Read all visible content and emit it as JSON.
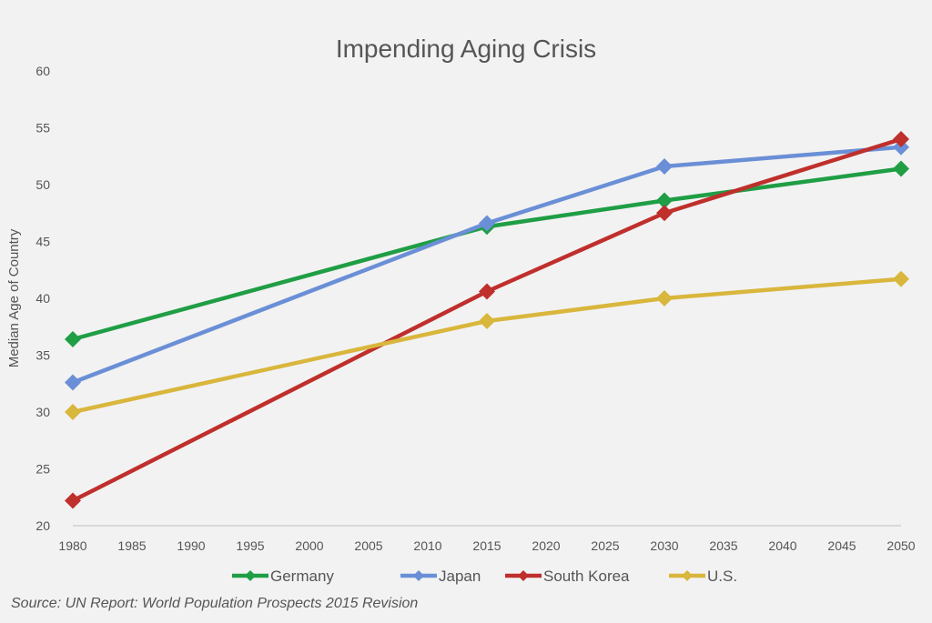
{
  "chart_data": {
    "type": "line",
    "title": "Impending Aging Crisis",
    "xlabel": "",
    "ylabel": "Median Age of Country",
    "xlim": [
      1980,
      2050
    ],
    "ylim": [
      20,
      60
    ],
    "x_ticks": [
      1980,
      1985,
      1990,
      1995,
      2000,
      2005,
      2010,
      2015,
      2020,
      2025,
      2030,
      2035,
      2040,
      2045,
      2050
    ],
    "y_ticks": [
      20,
      25,
      30,
      35,
      40,
      45,
      50,
      55,
      60
    ],
    "grid": false,
    "legend_placement": "bottom",
    "x": [
      1980,
      2015,
      2030,
      2050
    ],
    "series": [
      {
        "name": "Germany",
        "color": "#1f9e45",
        "values": [
          36.4,
          46.3,
          48.6,
          51.4
        ]
      },
      {
        "name": "Japan",
        "color": "#6a8fd6",
        "values": [
          32.6,
          46.6,
          51.6,
          53.3
        ]
      },
      {
        "name": "South Korea",
        "color": "#bf2f2c",
        "values": [
          22.2,
          40.6,
          47.5,
          54.0
        ]
      },
      {
        "name": "U.S.",
        "color": "#d9b63c",
        "values": [
          30.0,
          38.0,
          40.0,
          41.7
        ]
      }
    ],
    "marker": "diamond"
  },
  "source": "Source: UN Report: World Population Prospects 2015 Revision"
}
